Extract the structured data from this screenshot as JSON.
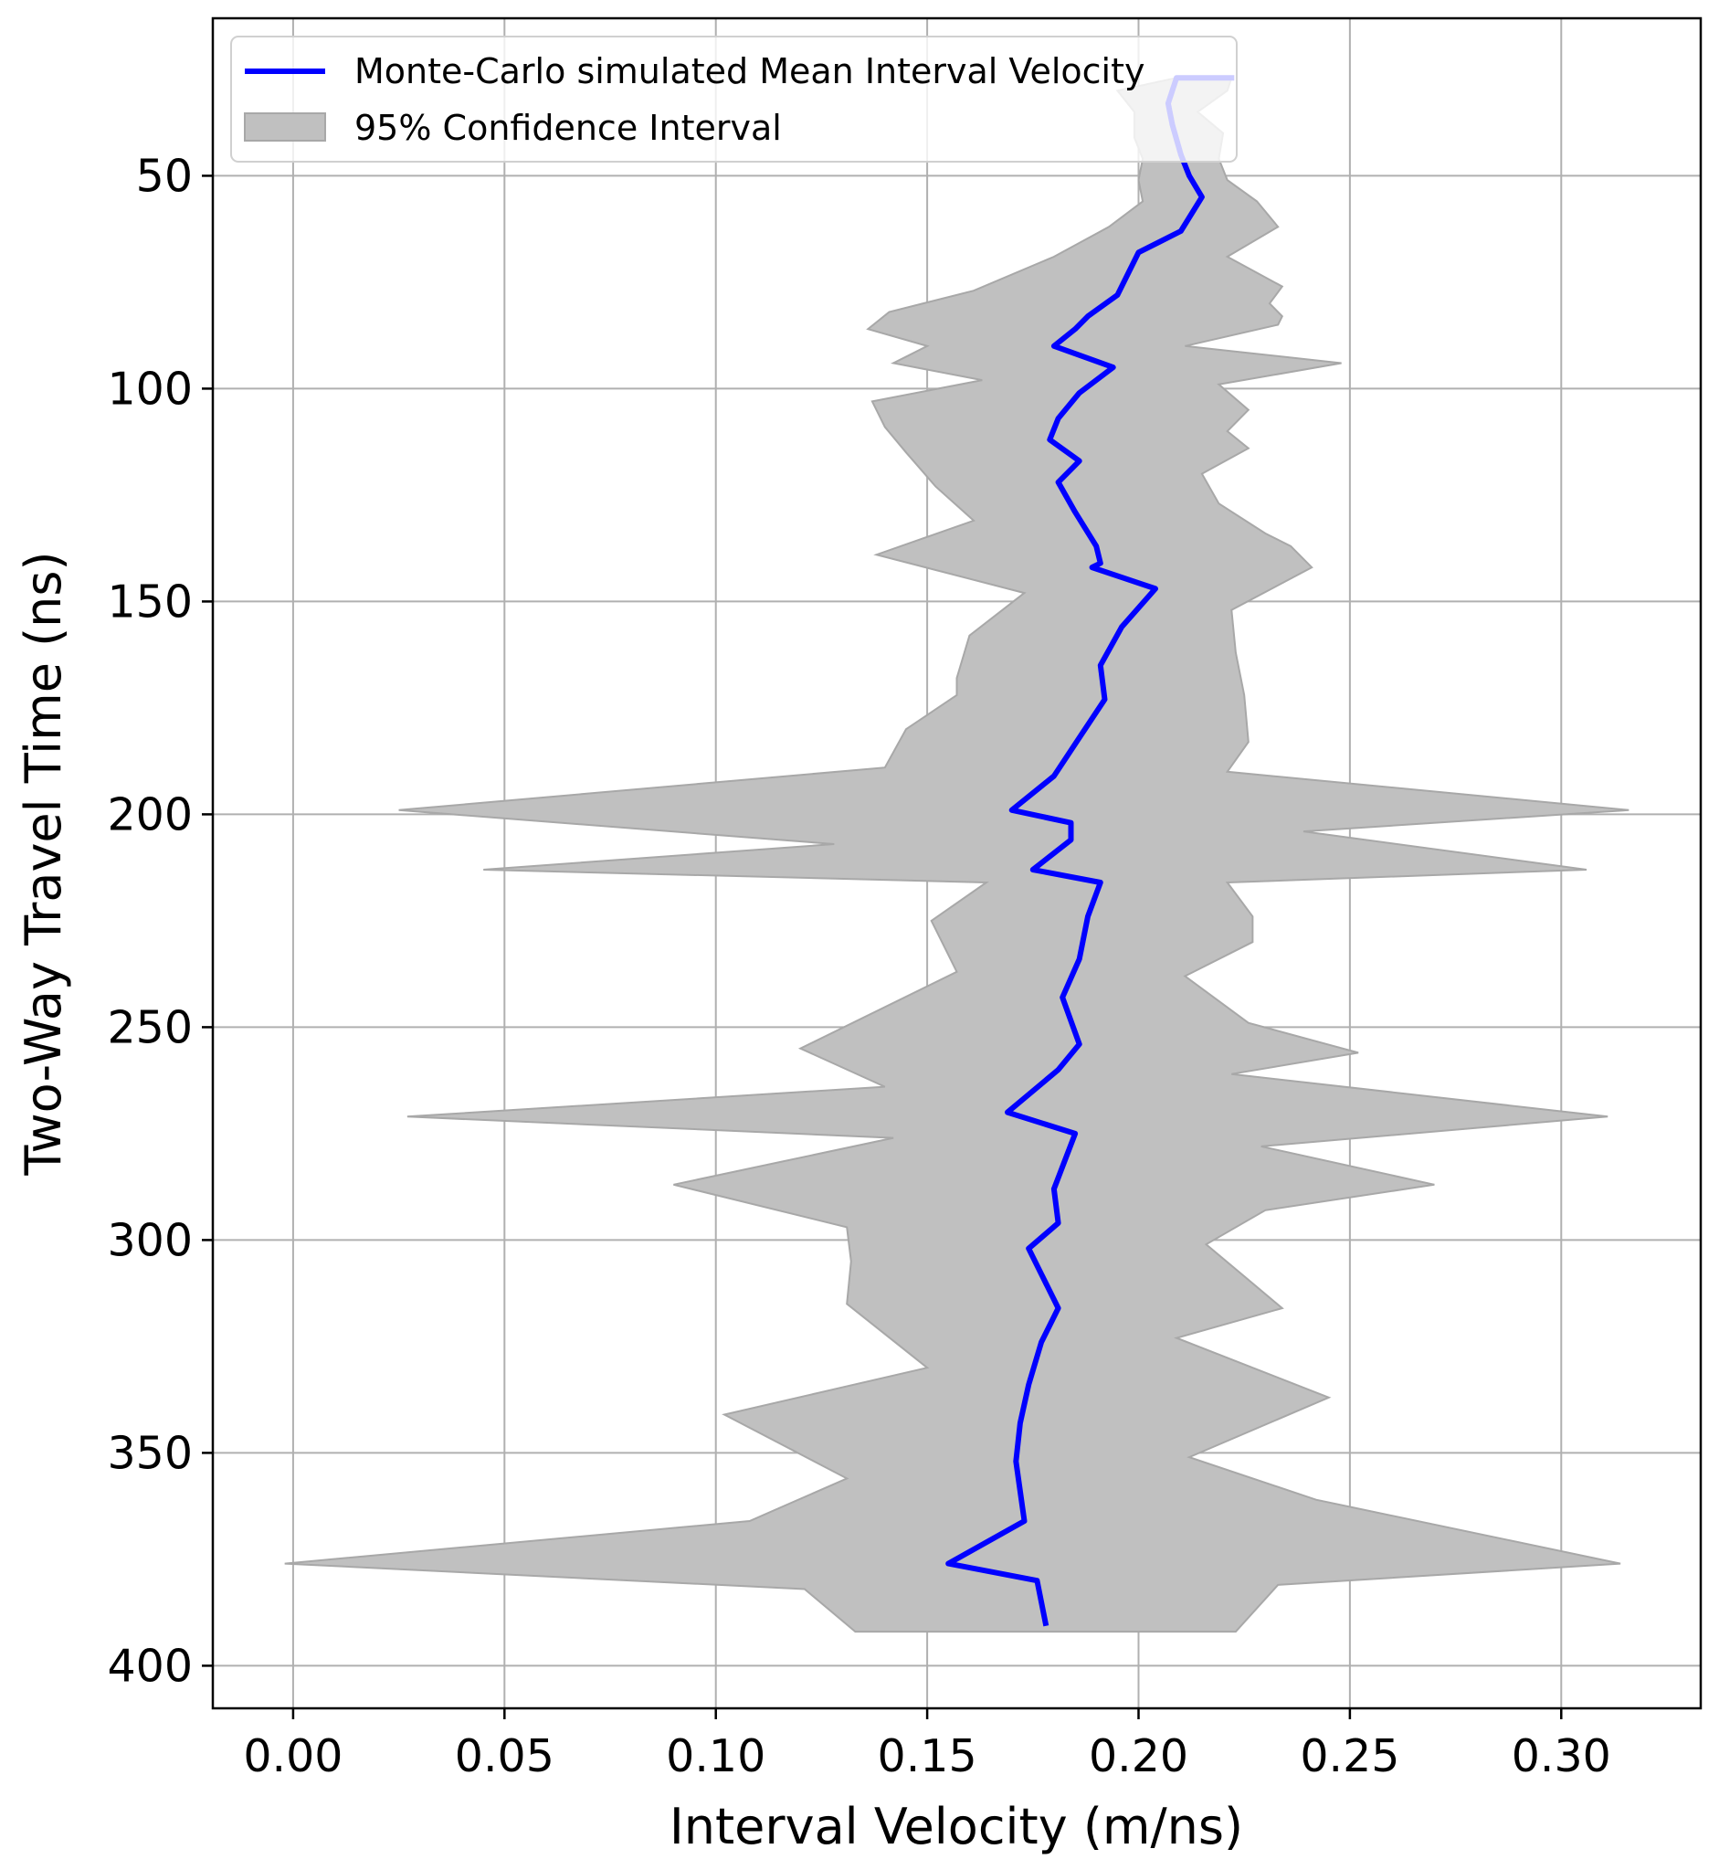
{
  "chart_data": {
    "type": "line",
    "title": "",
    "xlabel": "Interval Velocity (m/ns)",
    "ylabel": "Two-Way Travel Time (ns)",
    "xlim": [
      -0.019,
      0.333
    ],
    "ylim": [
      410,
      13
    ],
    "y_inverted": true,
    "grid": true,
    "legend_position": "top-left",
    "xticks": [
      "0.00",
      "0.05",
      "0.10",
      "0.15",
      "0.20",
      "0.25",
      "0.30"
    ],
    "xtick_values": [
      0.0,
      0.05,
      0.1,
      0.15,
      0.2,
      0.25,
      0.3
    ],
    "yticks": [
      "50",
      "100",
      "150",
      "200",
      "250",
      "300",
      "350",
      "400"
    ],
    "ytick_values": [
      50,
      100,
      150,
      200,
      250,
      300,
      350,
      400
    ],
    "series": [
      {
        "name": "Monte-Carlo simulated Mean Interval Velocity",
        "kind": "line",
        "color": "#0000ff",
        "points": [
          [
            0.222,
            27
          ],
          [
            0.209,
            27
          ],
          [
            0.207,
            33
          ],
          [
            0.208,
            38
          ],
          [
            0.21,
            45
          ],
          [
            0.212,
            50
          ],
          [
            0.215,
            55
          ],
          [
            0.21,
            63
          ],
          [
            0.2,
            68
          ],
          [
            0.195,
            78
          ],
          [
            0.188,
            83
          ],
          [
            0.185,
            86
          ],
          [
            0.18,
            90
          ],
          [
            0.194,
            95
          ],
          [
            0.186,
            101
          ],
          [
            0.181,
            107
          ],
          [
            0.179,
            112
          ],
          [
            0.186,
            117
          ],
          [
            0.181,
            122
          ],
          [
            0.185,
            129
          ],
          [
            0.19,
            137
          ],
          [
            0.191,
            141
          ],
          [
            0.189,
            142
          ],
          [
            0.204,
            147
          ],
          [
            0.196,
            156
          ],
          [
            0.191,
            165
          ],
          [
            0.192,
            173
          ],
          [
            0.186,
            182
          ],
          [
            0.18,
            191
          ],
          [
            0.17,
            199
          ],
          [
            0.184,
            202
          ],
          [
            0.184,
            206
          ],
          [
            0.175,
            213
          ],
          [
            0.191,
            216
          ],
          [
            0.188,
            224
          ],
          [
            0.186,
            234
          ],
          [
            0.182,
            243
          ],
          [
            0.186,
            254
          ],
          [
            0.181,
            260
          ],
          [
            0.169,
            270
          ],
          [
            0.185,
            275
          ],
          [
            0.18,
            288
          ],
          [
            0.181,
            296
          ],
          [
            0.174,
            302
          ],
          [
            0.181,
            316
          ],
          [
            0.177,
            324
          ],
          [
            0.174,
            334
          ],
          [
            0.172,
            343
          ],
          [
            0.171,
            352
          ],
          [
            0.173,
            366
          ],
          [
            0.155,
            376
          ],
          [
            0.176,
            380
          ],
          [
            0.178,
            390
          ]
        ]
      },
      {
        "name": "95% Confidence Interval",
        "kind": "band",
        "color": "#c0c0c0",
        "upper": [
          [
            0.222,
            27
          ],
          [
            0.221,
            30
          ],
          [
            0.214,
            35
          ],
          [
            0.22,
            40
          ],
          [
            0.219,
            46
          ],
          [
            0.221,
            51
          ],
          [
            0.228,
            56
          ],
          [
            0.233,
            62
          ],
          [
            0.221,
            69
          ],
          [
            0.234,
            76
          ],
          [
            0.231,
            80
          ],
          [
            0.234,
            83
          ],
          [
            0.233,
            85
          ],
          [
            0.211,
            90
          ],
          [
            0.248,
            94
          ],
          [
            0.219,
            99
          ],
          [
            0.226,
            105
          ],
          [
            0.221,
            110
          ],
          [
            0.226,
            114
          ],
          [
            0.215,
            120
          ],
          [
            0.219,
            127
          ],
          [
            0.23,
            134
          ],
          [
            0.236,
            137
          ],
          [
            0.241,
            142
          ],
          [
            0.222,
            152
          ],
          [
            0.223,
            162
          ],
          [
            0.225,
            172
          ],
          [
            0.226,
            183
          ],
          [
            0.221,
            190
          ],
          [
            0.316,
            199
          ],
          [
            0.239,
            204
          ],
          [
            0.306,
            213
          ],
          [
            0.221,
            216
          ],
          [
            0.227,
            224
          ],
          [
            0.227,
            230
          ],
          [
            0.211,
            238
          ],
          [
            0.226,
            249
          ],
          [
            0.252,
            256
          ],
          [
            0.222,
            261
          ],
          [
            0.311,
            271
          ],
          [
            0.229,
            278
          ],
          [
            0.27,
            287
          ],
          [
            0.23,
            293
          ],
          [
            0.216,
            301
          ],
          [
            0.234,
            316
          ],
          [
            0.209,
            323
          ],
          [
            0.245,
            337
          ],
          [
            0.212,
            351
          ],
          [
            0.242,
            361
          ],
          [
            0.314,
            376
          ],
          [
            0.233,
            381
          ],
          [
            0.223,
            392
          ]
        ],
        "lower": [
          [
            0.209,
            27
          ],
          [
            0.195,
            30
          ],
          [
            0.199,
            35
          ],
          [
            0.199,
            41
          ],
          [
            0.201,
            46
          ],
          [
            0.2,
            51
          ],
          [
            0.201,
            56
          ],
          [
            0.193,
            62
          ],
          [
            0.18,
            69
          ],
          [
            0.161,
            77
          ],
          [
            0.141,
            82
          ],
          [
            0.136,
            86
          ],
          [
            0.15,
            90
          ],
          [
            0.142,
            94
          ],
          [
            0.163,
            98
          ],
          [
            0.137,
            103
          ],
          [
            0.14,
            109
          ],
          [
            0.145,
            115
          ],
          [
            0.152,
            123
          ],
          [
            0.161,
            131
          ],
          [
            0.138,
            139
          ],
          [
            0.173,
            148
          ],
          [
            0.16,
            158
          ],
          [
            0.157,
            168
          ],
          [
            0.157,
            172
          ],
          [
            0.145,
            180
          ],
          [
            0.14,
            189
          ],
          [
            0.025,
            199
          ],
          [
            0.128,
            207
          ],
          [
            0.045,
            213
          ],
          [
            0.164,
            216
          ],
          [
            0.151,
            225
          ],
          [
            0.157,
            237
          ],
          [
            0.12,
            255
          ],
          [
            0.14,
            264
          ],
          [
            0.027,
            271
          ],
          [
            0.142,
            276
          ],
          [
            0.09,
            287
          ],
          [
            0.131,
            297
          ],
          [
            0.132,
            305
          ],
          [
            0.131,
            315
          ],
          [
            0.15,
            330
          ],
          [
            0.102,
            341
          ],
          [
            0.131,
            356
          ],
          [
            0.108,
            366
          ],
          [
            -0.002,
            376
          ],
          [
            0.121,
            382
          ],
          [
            0.133,
            392
          ]
        ]
      }
    ]
  }
}
